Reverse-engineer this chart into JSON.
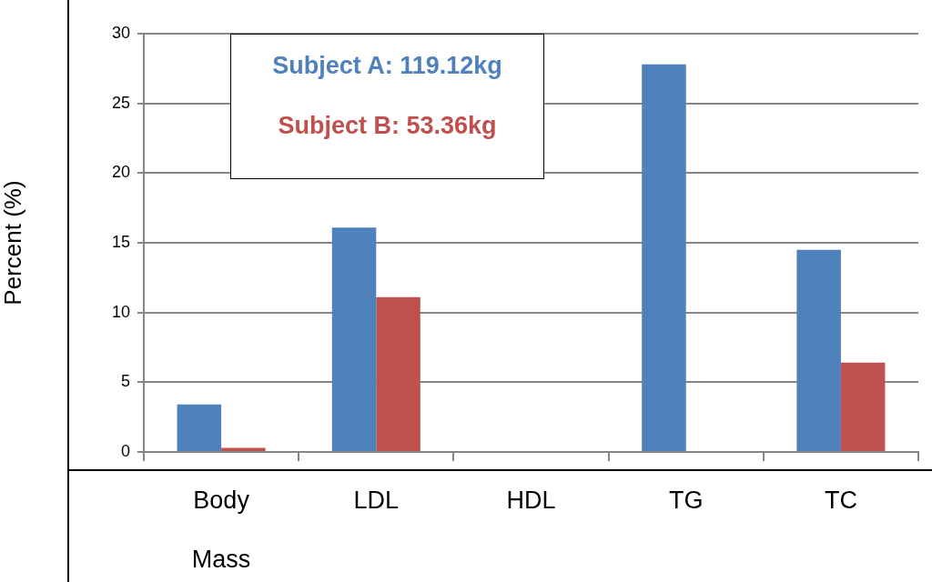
{
  "chart_data": {
    "type": "bar",
    "ylabel": "Percent (%)",
    "categories": [
      "Body Mass",
      "LDL",
      "HDL",
      "TG",
      "TC"
    ],
    "series": [
      {
        "name": "Subject A: 119.12kg",
        "color": "#4f81bd",
        "values": [
          3.4,
          16.1,
          0,
          27.8,
          14.5
        ]
      },
      {
        "name": "Subject B: 53.36kg",
        "color": "#c0504d",
        "values": [
          0.3,
          11.1,
          0,
          0,
          6.4
        ]
      }
    ],
    "ylim": [
      0,
      30
    ],
    "yticks": [
      0,
      5,
      10,
      15,
      20,
      25,
      30
    ],
    "grid": "y",
    "legend": "top left"
  }
}
